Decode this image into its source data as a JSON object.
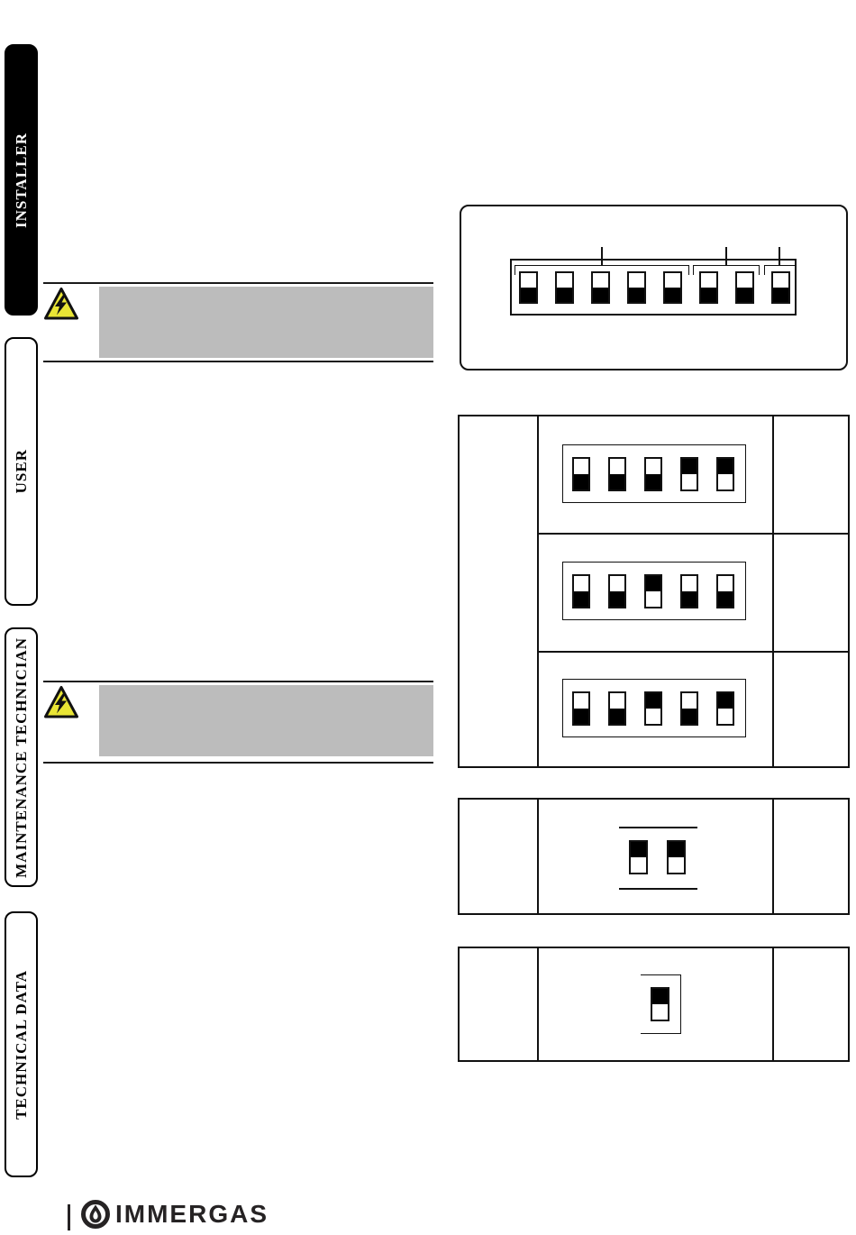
{
  "sidebar": {
    "tabs": [
      {
        "label": "INSTALLER",
        "active": true
      },
      {
        "label": "USER",
        "active": false
      },
      {
        "label": "MAINTENANCE TECHNICIAN",
        "active": false
      },
      {
        "label": "TECHNICAL DATA",
        "active": false
      }
    ]
  },
  "warnings": [
    {
      "icon": "electrical-hazard-triangle",
      "redacted": true
    },
    {
      "icon": "electrical-hazard-triangle",
      "redacted": true
    }
  ],
  "dip_panel": {
    "switches": [
      "down",
      "down",
      "down",
      "down",
      "down",
      "down",
      "down",
      "down"
    ],
    "groups": [
      {
        "from": 1,
        "to": 5
      },
      {
        "from": 6,
        "to": 7
      },
      {
        "from": 8,
        "to": 8
      }
    ]
  },
  "settings_table": {
    "rows": [
      {
        "switches": [
          "down",
          "down",
          "down",
          "up",
          "up"
        ]
      },
      {
        "switches": [
          "down",
          "down",
          "up",
          "down",
          "down"
        ]
      },
      {
        "switches": [
          "down",
          "down",
          "up",
          "down",
          "up"
        ]
      }
    ]
  },
  "pair_table": {
    "rows": [
      {
        "switches": [
          "up",
          "up"
        ]
      }
    ]
  },
  "single_table": {
    "rows": [
      {
        "switches": [
          "up"
        ]
      }
    ]
  },
  "footer": {
    "brand": "IMMERGAS"
  },
  "colors": {
    "ink": "#111111",
    "redacted_gray": "#bcbcbc",
    "warning_yellow": "#e9e535",
    "logo": "#262324"
  }
}
